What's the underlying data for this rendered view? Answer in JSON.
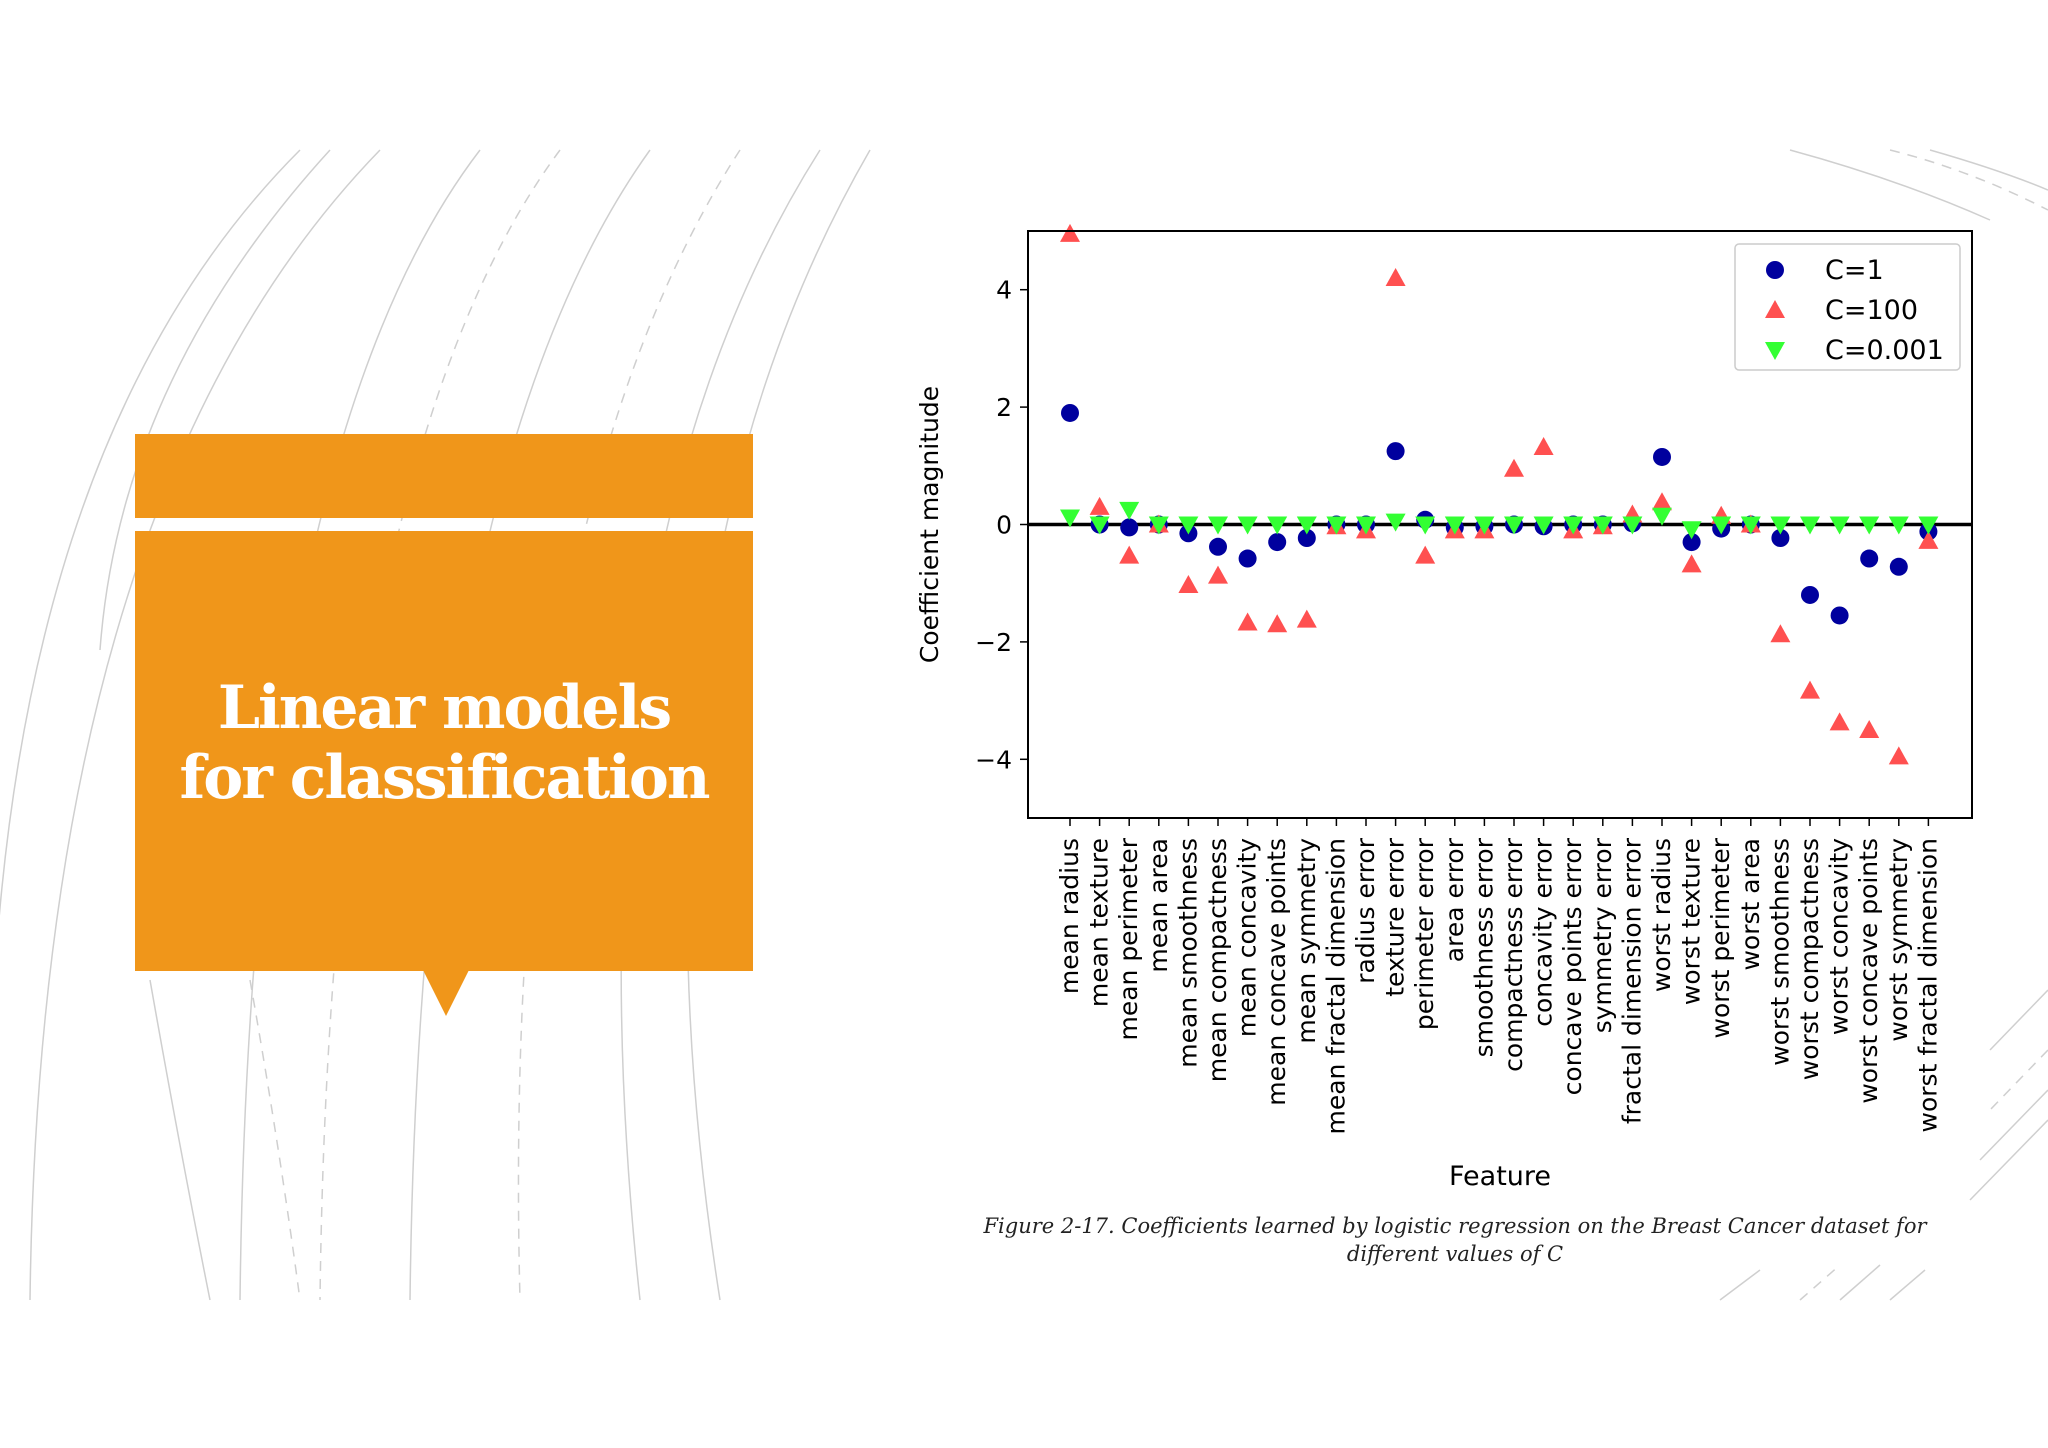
{
  "slide": {
    "title_lines": [
      "Linear models",
      "for classification"
    ],
    "accent_color": "#F0961A",
    "caption": "Figure 2-17. Coefficients learned by logistic regression on the Breast Cancer dataset for different values of C"
  },
  "chart_data": {
    "type": "scatter",
    "title": "",
    "xlabel": "Feature",
    "ylabel": "Coefficient magnitude",
    "ylim": [
      -5,
      5
    ],
    "yticks": [
      4,
      2,
      0,
      -2,
      -4
    ],
    "ytick_labels": [
      "4",
      "2",
      "0",
      "−2",
      "−4"
    ],
    "grid": false,
    "legend_position": "top-right",
    "zero_line": true,
    "categories": [
      "mean radius",
      "mean texture",
      "mean perimeter",
      "mean area",
      "mean smoothness",
      "mean compactness",
      "mean concavity",
      "mean concave points",
      "mean symmetry",
      "mean fractal dimension",
      "radius error",
      "texture error",
      "perimeter error",
      "area error",
      "smoothness error",
      "compactness error",
      "concavity error",
      "concave points error",
      "symmetry error",
      "fractal dimension error",
      "worst radius",
      "worst texture",
      "worst perimeter",
      "worst area",
      "worst smoothness",
      "worst compactness",
      "worst concavity",
      "worst concave points",
      "worst symmetry",
      "worst fractal dimension"
    ],
    "series": [
      {
        "name": "C=1",
        "marker": "circle",
        "color": "#00009E",
        "values": [
          1.9,
          0.0,
          -0.05,
          0.0,
          -0.15,
          -0.38,
          -0.58,
          -0.3,
          -0.23,
          0.0,
          0.0,
          1.25,
          0.08,
          -0.05,
          -0.03,
          0.0,
          -0.03,
          0.0,
          0.0,
          0.02,
          1.15,
          -0.3,
          -0.07,
          0.0,
          -0.23,
          -1.2,
          -1.55,
          -0.58,
          -0.72,
          -0.12
        ]
      },
      {
        "name": "C=100",
        "marker": "triangle-up",
        "color": "#FF5050",
        "values": [
          4.95,
          0.3,
          -0.53,
          0.0,
          -1.03,
          -0.87,
          -1.67,
          -1.7,
          -1.62,
          -0.03,
          -0.1,
          4.2,
          -0.53,
          -0.1,
          -0.1,
          0.95,
          1.32,
          -0.1,
          -0.03,
          0.17,
          0.38,
          -0.68,
          0.15,
          0.0,
          -1.87,
          -2.83,
          -3.37,
          -3.5,
          -3.95,
          -0.28
        ]
      },
      {
        "name": "C=0.001",
        "marker": "triangle-down",
        "color": "#33FF33",
        "values": [
          0.12,
          0.0,
          0.25,
          0.0,
          0.0,
          0.0,
          0.0,
          0.0,
          0.0,
          0.0,
          0.0,
          0.05,
          0.0,
          0.0,
          0.0,
          0.0,
          0.0,
          0.0,
          0.0,
          0.0,
          0.15,
          -0.08,
          0.0,
          0.0,
          0.0,
          0.0,
          0.0,
          0.0,
          0.0,
          0.0
        ]
      }
    ]
  }
}
